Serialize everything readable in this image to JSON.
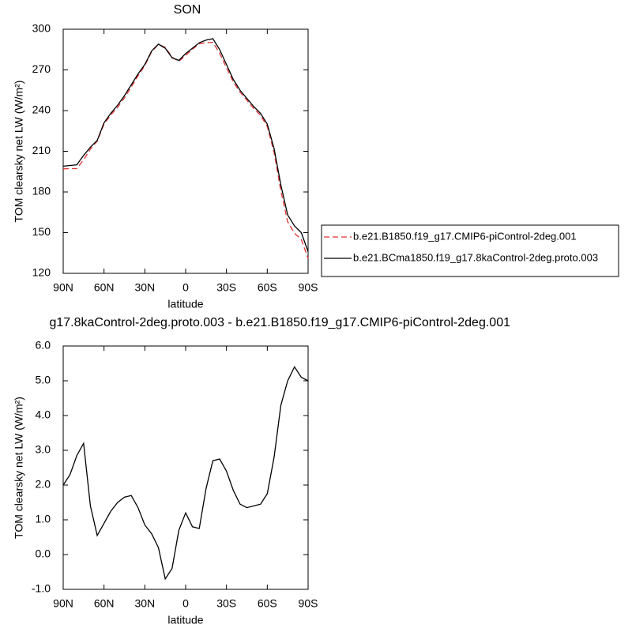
{
  "chart_data": [
    {
      "type": "line",
      "title": "SON",
      "xlabel": "latitude",
      "ylabel": "TOM clearsky net LW (W/m²)",
      "x": [
        90,
        85,
        80,
        75,
        70,
        65,
        60,
        55,
        50,
        45,
        40,
        35,
        30,
        25,
        20,
        15,
        10,
        5,
        0,
        -5,
        -10,
        -15,
        -20,
        -25,
        -30,
        -35,
        -40,
        -45,
        -50,
        -55,
        -60,
        -65,
        -70,
        -75,
        -80,
        -85,
        -90
      ],
      "series": [
        {
          "name": "b.e21.B1850.f19_g17.CMIP6-piControl-2deg.001",
          "color": "#e03030",
          "line_style": "dashed",
          "values": [
            197,
            197.2,
            197.2,
            203.8,
            211.6,
            217.5,
            230.1,
            236.8,
            242.5,
            249.4,
            257.3,
            265.7,
            273.2,
            283.4,
            288.8,
            286.7,
            279.4,
            276.3,
            280.8,
            285.2,
            289.3,
            290.1,
            290.3,
            282.3,
            271.6,
            261.2,
            253.6,
            247.7,
            241.6,
            236.6,
            228.3,
            209.2,
            180.7,
            158,
            149.6,
            144.9,
            131
          ]
        },
        {
          "name": "b.e21.BCma1850.f19_g17.8kaControl-2deg.proto.003",
          "color": "#000000",
          "line_style": "solid",
          "values": [
            199,
            199.5,
            200,
            207,
            213,
            218,
            231,
            238,
            244,
            251,
            259,
            267,
            274,
            284,
            289,
            286,
            279,
            277,
            282,
            286,
            290,
            292,
            293,
            285,
            274,
            263,
            255,
            249,
            243,
            238,
            230,
            212,
            185,
            163,
            155,
            150,
            136
          ]
        }
      ],
      "xlim": [
        90,
        -90
      ],
      "xticks": [
        {
          "value": 90,
          "label": "90N"
        },
        {
          "value": 60,
          "label": "60N"
        },
        {
          "value": 30,
          "label": "30N"
        },
        0,
        {
          "value": -30,
          "label": "30S"
        },
        {
          "value": -60,
          "label": "60S"
        },
        {
          "value": -90,
          "label": "90S"
        }
      ],
      "ylim": [
        120,
        300
      ],
      "yticks": [
        120,
        150,
        180,
        210,
        240,
        270,
        300
      ],
      "legend": "right"
    },
    {
      "type": "line",
      "title": "g17.8kaControl-2deg.proto.003 - b.e21.B1850.f19_g17.CMIP6-piControl-2deg.001",
      "xlabel": "latitude",
      "ylabel": "TOM clearsky net LW (W/m²)",
      "x": [
        90,
        85,
        80,
        75,
        70,
        65,
        60,
        55,
        50,
        45,
        40,
        35,
        30,
        25,
        20,
        15,
        10,
        5,
        0,
        -5,
        -10,
        -15,
        -20,
        -25,
        -30,
        -35,
        -40,
        -45,
        -50,
        -55,
        -60,
        -65,
        -70,
        -75,
        -80,
        -85,
        -90
      ],
      "values": [
        2.0,
        2.3,
        2.85,
        3.2,
        1.4,
        0.55,
        0.9,
        1.25,
        1.5,
        1.65,
        1.7,
        1.35,
        0.85,
        0.6,
        0.2,
        -0.7,
        -0.4,
        0.7,
        1.2,
        0.8,
        0.75,
        1.9,
        2.7,
        2.75,
        2.4,
        1.85,
        1.45,
        1.35,
        1.4,
        1.45,
        1.75,
        2.8,
        4.3,
        5.0,
        5.4,
        5.1,
        5.0
      ],
      "color": "#000000",
      "line_style": "solid",
      "xlim": [
        90,
        -90
      ],
      "xticks": [
        {
          "value": 90,
          "label": "90N"
        },
        {
          "value": 60,
          "label": "60N"
        },
        {
          "value": 30,
          "label": "30N"
        },
        0,
        {
          "value": -30,
          "label": "30S"
        },
        {
          "value": -60,
          "label": "60S"
        },
        {
          "value": -90,
          "label": "90S"
        }
      ],
      "ylim": [
        -1,
        6
      ],
      "yticks": [
        {
          "value": -1,
          "label": "-1.0"
        },
        {
          "value": 0,
          "label": "0.0"
        },
        {
          "value": 1,
          "label": "1.0"
        },
        {
          "value": 2,
          "label": "2.0"
        },
        {
          "value": 3,
          "label": "3.0"
        },
        {
          "value": 4,
          "label": "4.0"
        },
        {
          "value": 5,
          "label": "5.0"
        },
        {
          "value": 6,
          "label": "6.0"
        }
      ]
    }
  ]
}
